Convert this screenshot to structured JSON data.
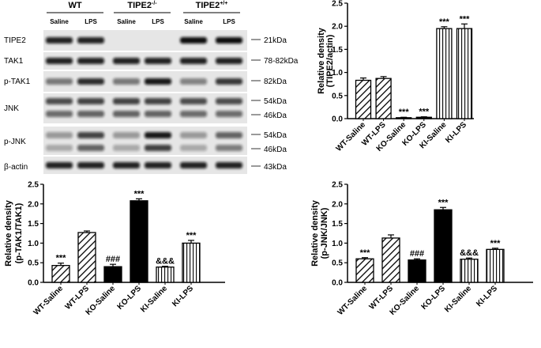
{
  "blot": {
    "groups": [
      {
        "label": "WT",
        "sup": ""
      },
      {
        "label": "TIPE2",
        "sup": "-/-"
      },
      {
        "label": "TIPE2",
        "sup": "+/+"
      }
    ],
    "lanes": [
      "Saline",
      "LPS",
      "Saline",
      "LPS",
      "Saline",
      "LPS"
    ],
    "rows": [
      {
        "label": "TIPE2",
        "markers": [
          "21kDa"
        ]
      },
      {
        "label": "TAK1",
        "markers": [
          "78-82kDa"
        ]
      },
      {
        "label": "p-TAK1",
        "markers": [
          "82kDa"
        ]
      },
      {
        "label": "JNK",
        "markers": [
          "54kDa",
          "46kDa"
        ]
      },
      {
        "label": "p-JNK",
        "markers": [
          "54kDa",
          "46kDa"
        ]
      },
      {
        "label": "β-actin",
        "markers": [
          "43kDa"
        ]
      }
    ],
    "band_intensity": [
      [
        0.9,
        0.9,
        0.0,
        0.0,
        1.0,
        1.0
      ],
      [
        0.9,
        0.9,
        0.9,
        0.9,
        0.9,
        0.9
      ],
      [
        0.5,
        0.85,
        0.5,
        0.95,
        0.45,
        0.8
      ],
      [
        0.7,
        0.75,
        0.75,
        0.75,
        0.7,
        0.7
      ],
      [
        0.35,
        0.75,
        0.35,
        0.95,
        0.35,
        0.6
      ],
      [
        0.9,
        0.9,
        0.9,
        0.9,
        0.9,
        0.9
      ]
    ]
  },
  "colors": {
    "black": "#000000",
    "white": "#ffffff",
    "blot_bg": "#e6e6e6",
    "band": "#111111"
  },
  "chart_data": [
    {
      "type": "bar",
      "panel": "top-right",
      "categories": [
        "WT-Saline",
        "WT-LPS",
        "KO-Saline",
        "KO-LPS",
        "KI-Saline",
        "KI-LPS"
      ],
      "values": [
        0.83,
        0.87,
        0.02,
        0.03,
        1.95,
        1.95
      ],
      "errors": [
        0.05,
        0.04,
        0.01,
        0.01,
        0.04,
        0.1
      ],
      "annotations": [
        "",
        "",
        "***",
        "***",
        "***",
        "***"
      ],
      "fills": [
        "hatch-diag",
        "hatch-diag",
        "solid-black",
        "solid-black",
        "hatch-vert",
        "hatch-vert"
      ],
      "ylabel": [
        "Relative density",
        "(TIPE2/actin)"
      ],
      "ylim": [
        0,
        2.5
      ],
      "yticks": [
        "0.0",
        "0.5",
        "1.0",
        "1.5",
        "2.0",
        "2.5"
      ]
    },
    {
      "type": "bar",
      "panel": "bottom-left",
      "categories": [
        "WT-Saline",
        "WT-LPS",
        "KO-Saline",
        "KO-LPS",
        "KI-Saline",
        "KI-LPS"
      ],
      "values": [
        0.43,
        1.27,
        0.4,
        2.08,
        0.39,
        1.0
      ],
      "errors": [
        0.06,
        0.04,
        0.06,
        0.05,
        0.02,
        0.07
      ],
      "annotations": [
        "***",
        "",
        "###",
        "***",
        "&&&",
        "***"
      ],
      "fills": [
        "hatch-diag",
        "hatch-diag",
        "solid-black",
        "solid-black",
        "hatch-vert",
        "hatch-vert"
      ],
      "ylabel": [
        "Relative density",
        "(p-TAK1/TAK1)"
      ],
      "ylim": [
        0,
        2.5
      ],
      "yticks": [
        "0.0",
        "0.5",
        "1.0",
        "1.5",
        "2.0",
        "2.5"
      ]
    },
    {
      "type": "bar",
      "panel": "bottom-right",
      "categories": [
        "WT-Saline",
        "WT-LPS",
        "KO-Saline",
        "KO-LPS",
        "KI-Saline",
        "KI-LPS"
      ],
      "values": [
        0.6,
        1.13,
        0.57,
        1.85,
        0.59,
        0.84
      ],
      "errors": [
        0.03,
        0.08,
        0.03,
        0.06,
        0.03,
        0.03
      ],
      "annotations": [
        "***",
        "",
        "###",
        "***",
        "&&&",
        "***"
      ],
      "fills": [
        "hatch-diag",
        "hatch-diag",
        "solid-black",
        "solid-black",
        "hatch-vert",
        "hatch-vert"
      ],
      "ylabel": [
        "Relative density",
        "(p-JNK/JNK)"
      ],
      "ylim": [
        0,
        2.5
      ],
      "yticks": [
        "0.0",
        "0.5",
        "1.0",
        "1.5",
        "2.0",
        "2.5"
      ]
    }
  ]
}
